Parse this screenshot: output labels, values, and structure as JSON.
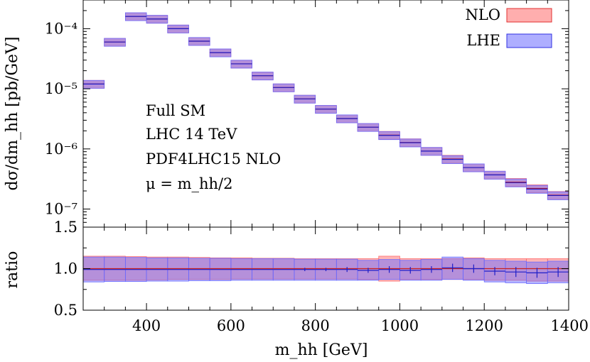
{
  "chart_data": [
    {
      "type": "bar",
      "panel": "main",
      "ylabel": "dσ/dm_hh [pb/GeV]",
      "yscale": "log",
      "xlim": [
        250,
        1400
      ],
      "ylim": [
        5e-08,
        0.0003
      ],
      "y_tick_labels": [
        "10⁻⁴",
        "10⁻⁵",
        "10⁻⁶",
        "10⁻⁷"
      ],
      "annotations": [
        "Full SM",
        "LHC 14 TeV",
        "PDF4LHC15 NLO",
        "μ = m_hh/2"
      ],
      "legend_position": "top-right",
      "bin_edges": [
        250,
        300,
        350,
        400,
        450,
        500,
        550,
        600,
        650,
        700,
        750,
        800,
        850,
        900,
        950,
        1000,
        1050,
        1100,
        1150,
        1200,
        1250,
        1300,
        1350,
        1400
      ],
      "series": [
        {
          "name": "NLO",
          "color": "#ff6b6b",
          "values": [
            1.2e-05,
            6e-05,
            0.00016,
            0.000145,
            0.0001,
            6.2e-05,
            4e-05,
            2.6e-05,
            1.65e-05,
            1.05e-05,
            6.8e-06,
            4.6e-06,
            3.2e-06,
            2.3e-06,
            1.7e-06,
            1.28e-06,
            9.2e-07,
            6.8e-07,
            4.9e-07,
            3.7e-07,
            2.8e-07,
            2.2e-07,
            1.7e-07
          ],
          "band_rel": [
            0.15,
            0.15,
            0.15,
            0.15,
            0.15,
            0.15,
            0.15,
            0.15,
            0.15,
            0.15,
            0.15,
            0.15,
            0.15,
            0.15,
            0.15,
            0.15,
            0.15,
            0.15,
            0.15,
            0.15,
            0.15,
            0.15,
            0.15
          ]
        },
        {
          "name": "LHE",
          "color": "#6b6bff",
          "values": [
            1.2e-05,
            6e-05,
            0.00016,
            0.000145,
            0.0001,
            6.2e-05,
            4e-05,
            2.6e-05,
            1.65e-05,
            1.05e-05,
            6.8e-06,
            4.6e-06,
            3.2e-06,
            2.3e-06,
            1.68e-06,
            1.27e-06,
            9.2e-07,
            6.7e-07,
            4.9e-07,
            3.7e-07,
            2.75e-07,
            2.15e-07,
            1.68e-07
          ],
          "band_rel": [
            0.15,
            0.15,
            0.15,
            0.15,
            0.15,
            0.15,
            0.15,
            0.15,
            0.15,
            0.15,
            0.15,
            0.15,
            0.15,
            0.15,
            0.15,
            0.15,
            0.15,
            0.15,
            0.15,
            0.15,
            0.15,
            0.15,
            0.15
          ]
        }
      ]
    },
    {
      "type": "bar",
      "panel": "ratio",
      "ylabel": "ratio",
      "xlabel": "m_hh [GeV]",
      "xlim": [
        250,
        1400
      ],
      "ylim": [
        0.5,
        1.5
      ],
      "x_tick_labels": [
        "400",
        "600",
        "800",
        "1000",
        "1200",
        "1400"
      ],
      "y_tick_labels": [
        "0.5",
        "1.0",
        "1.5"
      ],
      "bin_edges": [
        250,
        300,
        350,
        400,
        450,
        500,
        550,
        600,
        650,
        700,
        750,
        800,
        850,
        900,
        950,
        1000,
        1050,
        1100,
        1150,
        1200,
        1250,
        1300,
        1350,
        1400
      ],
      "series": [
        {
          "name": "NLO",
          "color": "#ff6b6b",
          "values": [
            1.0,
            1.0,
            1.0,
            1.0,
            1.0,
            1.0,
            1.0,
            1.0,
            1.0,
            1.0,
            1.0,
            1.0,
            1.0,
            1.0,
            1.0,
            1.0,
            1.0,
            1.0,
            1.0,
            1.0,
            1.0,
            1.0,
            1.0
          ],
          "lo": [
            0.86,
            0.86,
            0.86,
            0.865,
            0.87,
            0.87,
            0.87,
            0.875,
            0.875,
            0.875,
            0.875,
            0.875,
            0.875,
            0.87,
            0.85,
            0.87,
            0.87,
            0.87,
            0.87,
            0.86,
            0.86,
            0.85,
            0.85
          ],
          "hi": [
            1.15,
            1.15,
            1.145,
            1.14,
            1.14,
            1.135,
            1.13,
            1.13,
            1.125,
            1.125,
            1.12,
            1.12,
            1.12,
            1.12,
            1.15,
            1.12,
            1.12,
            1.12,
            1.13,
            1.12,
            1.12,
            1.12,
            1.12
          ]
        },
        {
          "name": "LHE",
          "color": "#6b6bff",
          "values": [
            0.99,
            0.99,
            0.99,
            0.99,
            0.99,
            0.99,
            0.99,
            0.99,
            0.99,
            0.99,
            0.99,
            0.99,
            0.99,
            0.98,
            0.99,
            0.98,
            0.99,
            1.01,
            1.0,
            0.97,
            0.96,
            0.95,
            0.96
          ],
          "lo": [
            0.84,
            0.845,
            0.845,
            0.85,
            0.85,
            0.855,
            0.855,
            0.86,
            0.86,
            0.86,
            0.86,
            0.86,
            0.86,
            0.86,
            0.87,
            0.86,
            0.86,
            0.87,
            0.86,
            0.84,
            0.83,
            0.82,
            0.83
          ],
          "hi": [
            1.14,
            1.14,
            1.135,
            1.13,
            1.13,
            1.125,
            1.125,
            1.12,
            1.12,
            1.12,
            1.115,
            1.115,
            1.115,
            1.1,
            1.11,
            1.1,
            1.11,
            1.14,
            1.12,
            1.1,
            1.09,
            1.08,
            1.09
          ],
          "err": [
            0.0,
            0.0,
            0.0,
            0.0,
            0.0,
            0.0,
            0.0,
            0.0,
            0.0,
            0.0,
            0.02,
            0.02,
            0.03,
            0.03,
            0.04,
            0.04,
            0.04,
            0.05,
            0.05,
            0.05,
            0.06,
            0.06,
            0.06
          ]
        }
      ]
    }
  ]
}
